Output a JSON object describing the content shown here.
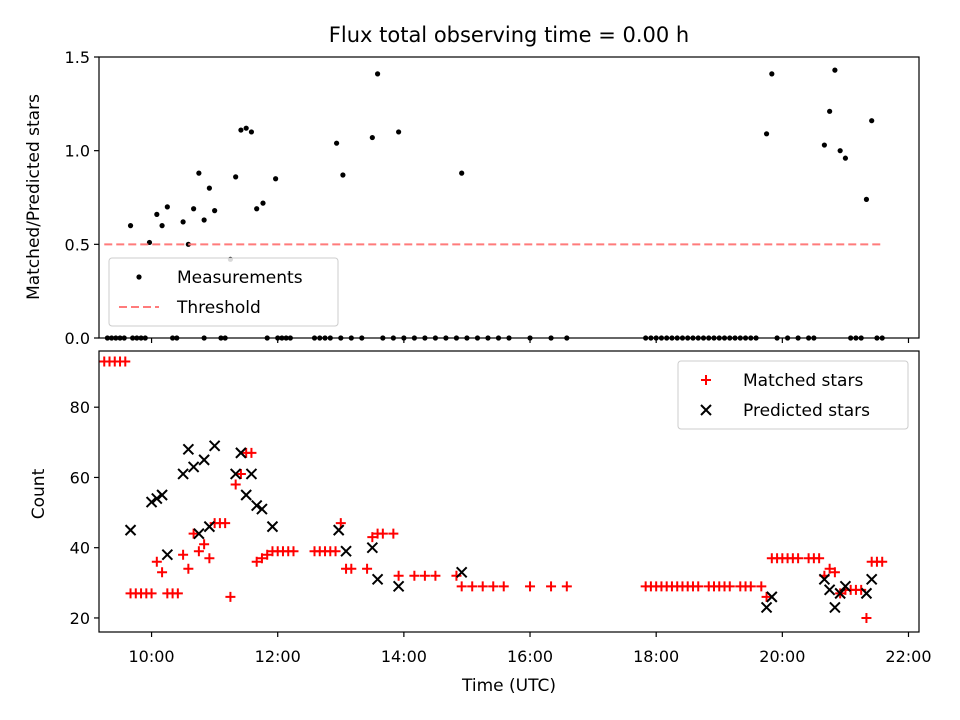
{
  "title": "Flux total observing time = 0.00 h",
  "xlabel": "Time (UTC)",
  "x_ticks": [
    "10:00",
    "12:00",
    "14:00",
    "16:00",
    "18:00",
    "20:00",
    "22:00"
  ],
  "colors": {
    "measurements": "#000000",
    "threshold": "#ff7b7b",
    "matched": "#ff0000",
    "predicted": "#000000",
    "axes": "#000000",
    "legend_border": "#cccccc"
  },
  "chart_data": [
    {
      "type": "scatter",
      "ylabel": "Matched/Predicted stars",
      "xlim": [
        "09:10",
        "22:10"
      ],
      "ylim": [
        0,
        1.5
      ],
      "y_ticks": [
        "0.0",
        "0.5",
        "1.0",
        "1.5"
      ],
      "legend_position": "lower-left",
      "series": [
        {
          "name": "Measurements",
          "marker": "dot",
          "points": [
            [
              "09:40",
              0.6
            ],
            [
              "09:58",
              0.51
            ],
            [
              "10:05",
              0.66
            ],
            [
              "10:10",
              0.6
            ],
            [
              "10:15",
              0.7
            ],
            [
              "10:30",
              0.62
            ],
            [
              "10:35",
              0.5
            ],
            [
              "10:40",
              0.69
            ],
            [
              "10:45",
              0.88
            ],
            [
              "10:50",
              0.63
            ],
            [
              "10:55",
              0.8
            ],
            [
              "11:00",
              0.68
            ],
            [
              "11:15",
              0.42
            ],
            [
              "11:20",
              0.86
            ],
            [
              "11:25",
              1.11
            ],
            [
              "11:30",
              1.12
            ],
            [
              "11:35",
              1.1
            ],
            [
              "11:40",
              0.69
            ],
            [
              "11:46",
              0.72
            ],
            [
              "11:58",
              0.85
            ],
            [
              "12:56",
              1.04
            ],
            [
              "13:02",
              0.87
            ],
            [
              "13:30",
              1.07
            ],
            [
              "13:35",
              1.41
            ],
            [
              "13:55",
              1.1
            ],
            [
              "14:55",
              0.88
            ],
            [
              "19:45",
              1.09
            ],
            [
              "19:50",
              1.41
            ],
            [
              "20:40",
              1.03
            ],
            [
              "20:45",
              1.21
            ],
            [
              "20:50",
              1.43
            ],
            [
              "20:55",
              1.0
            ],
            [
              "21:00",
              0.96
            ],
            [
              "21:20",
              0.74
            ],
            [
              "21:25",
              1.16
            ],
            [
              "09:18",
              0
            ],
            [
              "09:22",
              0
            ],
            [
              "09:26",
              0
            ],
            [
              "09:30",
              0
            ],
            [
              "09:34",
              0
            ],
            [
              "09:42",
              0
            ],
            [
              "09:46",
              0
            ],
            [
              "09:50",
              0
            ],
            [
              "09:54",
              0
            ],
            [
              "10:20",
              0
            ],
            [
              "10:24",
              0
            ],
            [
              "10:50",
              0
            ],
            [
              "11:06",
              0
            ],
            [
              "11:10",
              0
            ],
            [
              "11:50",
              0
            ],
            [
              "12:00",
              0
            ],
            [
              "12:04",
              0
            ],
            [
              "12:08",
              0
            ],
            [
              "12:12",
              0
            ],
            [
              "12:35",
              0
            ],
            [
              "12:40",
              0
            ],
            [
              "12:45",
              0
            ],
            [
              "12:50",
              0
            ],
            [
              "13:00",
              0
            ],
            [
              "13:10",
              0
            ],
            [
              "13:20",
              0
            ],
            [
              "13:40",
              0
            ],
            [
              "13:50",
              0
            ],
            [
              "14:00",
              0
            ],
            [
              "14:10",
              0
            ],
            [
              "14:20",
              0
            ],
            [
              "14:30",
              0
            ],
            [
              "14:40",
              0
            ],
            [
              "14:50",
              0
            ],
            [
              "15:00",
              0
            ],
            [
              "15:10",
              0
            ],
            [
              "15:20",
              0
            ],
            [
              "15:30",
              0
            ],
            [
              "15:40",
              0
            ],
            [
              "16:00",
              0
            ],
            [
              "16:20",
              0
            ],
            [
              "16:35",
              0
            ],
            [
              "17:50",
              0
            ],
            [
              "17:55",
              0
            ],
            [
              "18:00",
              0
            ],
            [
              "18:05",
              0
            ],
            [
              "18:10",
              0
            ],
            [
              "18:15",
              0
            ],
            [
              "18:20",
              0
            ],
            [
              "18:25",
              0
            ],
            [
              "18:30",
              0
            ],
            [
              "18:35",
              0
            ],
            [
              "18:40",
              0
            ],
            [
              "18:45",
              0
            ],
            [
              "18:50",
              0
            ],
            [
              "18:55",
              0
            ],
            [
              "19:00",
              0
            ],
            [
              "19:05",
              0
            ],
            [
              "19:10",
              0
            ],
            [
              "19:15",
              0
            ],
            [
              "19:20",
              0
            ],
            [
              "19:25",
              0
            ],
            [
              "19:30",
              0
            ],
            [
              "19:35",
              0
            ],
            [
              "19:55",
              0
            ],
            [
              "20:05",
              0
            ],
            [
              "20:15",
              0
            ],
            [
              "20:25",
              0
            ],
            [
              "20:30",
              0
            ],
            [
              "21:05",
              0
            ],
            [
              "21:10",
              0
            ],
            [
              "21:15",
              0
            ],
            [
              "21:30",
              0
            ],
            [
              "21:35",
              0
            ]
          ]
        },
        {
          "name": "Threshold",
          "style": "dashed",
          "x": [
            "09:15",
            "21:35"
          ],
          "y": [
            0.5,
            0.5
          ]
        }
      ]
    },
    {
      "type": "scatter",
      "ylabel": "Count",
      "xlim": [
        "09:10",
        "22:10"
      ],
      "ylim": [
        16,
        96
      ],
      "y_ticks": [
        "20",
        "40",
        "60",
        "80"
      ],
      "legend_position": "top-right",
      "series": [
        {
          "name": "Matched stars",
          "marker": "plus",
          "points": [
            [
              "09:15",
              93
            ],
            [
              "09:20",
              93
            ],
            [
              "09:25",
              93
            ],
            [
              "09:30",
              93
            ],
            [
              "09:35",
              93
            ],
            [
              "09:40",
              27
            ],
            [
              "09:45",
              27
            ],
            [
              "09:50",
              27
            ],
            [
              "09:55",
              27
            ],
            [
              "10:00",
              27
            ],
            [
              "10:05",
              36
            ],
            [
              "10:10",
              33
            ],
            [
              "10:15",
              27
            ],
            [
              "10:20",
              27
            ],
            [
              "10:25",
              27
            ],
            [
              "10:30",
              38
            ],
            [
              "10:35",
              34
            ],
            [
              "10:40",
              44
            ],
            [
              "10:45",
              39
            ],
            [
              "10:50",
              41
            ],
            [
              "10:55",
              37
            ],
            [
              "11:00",
              47
            ],
            [
              "11:05",
              47
            ],
            [
              "11:10",
              47
            ],
            [
              "11:15",
              26
            ],
            [
              "11:20",
              58
            ],
            [
              "11:25",
              61
            ],
            [
              "11:30",
              67
            ],
            [
              "11:35",
              67
            ],
            [
              "11:40",
              36
            ],
            [
              "11:45",
              37
            ],
            [
              "11:50",
              38
            ],
            [
              "11:55",
              39
            ],
            [
              "12:00",
              39
            ],
            [
              "12:05",
              39
            ],
            [
              "12:10",
              39
            ],
            [
              "12:15",
              39
            ],
            [
              "12:35",
              39
            ],
            [
              "12:40",
              39
            ],
            [
              "12:45",
              39
            ],
            [
              "12:50",
              39
            ],
            [
              "12:55",
              39
            ],
            [
              "13:00",
              47
            ],
            [
              "13:05",
              34
            ],
            [
              "13:10",
              34
            ],
            [
              "13:25",
              34
            ],
            [
              "13:30",
              43
            ],
            [
              "13:35",
              44
            ],
            [
              "13:40",
              44
            ],
            [
              "13:50",
              44
            ],
            [
              "13:55",
              32
            ],
            [
              "14:10",
              32
            ],
            [
              "14:20",
              32
            ],
            [
              "14:30",
              32
            ],
            [
              "14:50",
              32
            ],
            [
              "14:55",
              29
            ],
            [
              "15:05",
              29
            ],
            [
              "15:15",
              29
            ],
            [
              "15:25",
              29
            ],
            [
              "15:35",
              29
            ],
            [
              "16:00",
              29
            ],
            [
              "16:20",
              29
            ],
            [
              "16:35",
              29
            ],
            [
              "17:50",
              29
            ],
            [
              "17:55",
              29
            ],
            [
              "18:00",
              29
            ],
            [
              "18:05",
              29
            ],
            [
              "18:10",
              29
            ],
            [
              "18:15",
              29
            ],
            [
              "18:20",
              29
            ],
            [
              "18:25",
              29
            ],
            [
              "18:30",
              29
            ],
            [
              "18:35",
              29
            ],
            [
              "18:40",
              29
            ],
            [
              "18:50",
              29
            ],
            [
              "18:55",
              29
            ],
            [
              "19:00",
              29
            ],
            [
              "19:05",
              29
            ],
            [
              "19:10",
              29
            ],
            [
              "19:20",
              29
            ],
            [
              "19:25",
              29
            ],
            [
              "19:30",
              29
            ],
            [
              "19:40",
              29
            ],
            [
              "19:45",
              26
            ],
            [
              "19:50",
              37
            ],
            [
              "19:55",
              37
            ],
            [
              "20:00",
              37
            ],
            [
              "20:05",
              37
            ],
            [
              "20:10",
              37
            ],
            [
              "20:15",
              37
            ],
            [
              "20:25",
              37
            ],
            [
              "20:30",
              37
            ],
            [
              "20:35",
              37
            ],
            [
              "20:40",
              32
            ],
            [
              "20:45",
              34
            ],
            [
              "20:50",
              33
            ],
            [
              "20:55",
              27
            ],
            [
              "21:00",
              28
            ],
            [
              "21:05",
              28
            ],
            [
              "21:10",
              28
            ],
            [
              "21:15",
              28
            ],
            [
              "21:20",
              20
            ],
            [
              "21:25",
              36
            ],
            [
              "21:30",
              36
            ],
            [
              "21:35",
              36
            ]
          ]
        },
        {
          "name": "Predicted stars",
          "marker": "x",
          "points": [
            [
              "09:40",
              45
            ],
            [
              "10:00",
              53
            ],
            [
              "10:05",
              54
            ],
            [
              "10:10",
              55
            ],
            [
              "10:15",
              38
            ],
            [
              "10:30",
              61
            ],
            [
              "10:35",
              68
            ],
            [
              "10:40",
              63
            ],
            [
              "10:45",
              44
            ],
            [
              "10:50",
              65
            ],
            [
              "10:55",
              46
            ],
            [
              "11:00",
              69
            ],
            [
              "11:20",
              61
            ],
            [
              "11:25",
              67
            ],
            [
              "11:30",
              55
            ],
            [
              "11:35",
              61
            ],
            [
              "11:40",
              52
            ],
            [
              "11:45",
              51
            ],
            [
              "11:55",
              46
            ],
            [
              "12:58",
              45
            ],
            [
              "13:05",
              39
            ],
            [
              "13:30",
              40
            ],
            [
              "13:35",
              31
            ],
            [
              "13:55",
              29
            ],
            [
              "14:55",
              33
            ],
            [
              "19:45",
              23
            ],
            [
              "19:50",
              26
            ],
            [
              "20:40",
              31
            ],
            [
              "20:45",
              28
            ],
            [
              "20:50",
              23
            ],
            [
              "20:55",
              27
            ],
            [
              "21:00",
              29
            ],
            [
              "21:20",
              27
            ],
            [
              "21:25",
              31
            ]
          ]
        }
      ]
    }
  ]
}
